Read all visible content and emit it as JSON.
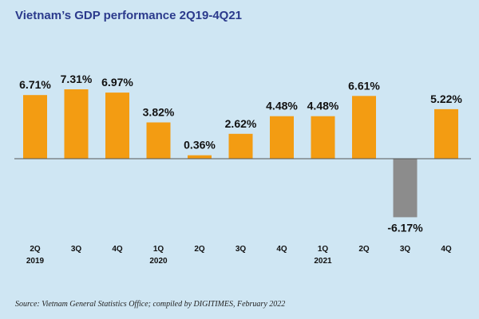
{
  "colors": {
    "background": "#cfe6f3",
    "title": "#2b3a8c",
    "positive_bar": "#f39c12",
    "negative_bar": "#8c8c8c",
    "zero_line": "#555555",
    "text": "#111111"
  },
  "chart_data": {
    "type": "bar",
    "title": "Vietnam’s GDP performance 2Q19-4Q21",
    "categories": [
      "2Q",
      "3Q",
      "4Q",
      "1Q",
      "2Q",
      "3Q",
      "4Q",
      "1Q",
      "2Q",
      "3Q",
      "4Q"
    ],
    "year_labels": [
      "2019",
      "",
      "",
      "2020",
      "",
      "",
      "",
      "2021",
      "",
      "",
      ""
    ],
    "values": [
      6.71,
      7.31,
      6.97,
      3.82,
      0.36,
      2.62,
      4.48,
      4.48,
      6.61,
      -6.17,
      5.22
    ],
    "value_labels": [
      "6.71%",
      "7.31%",
      "6.97%",
      "3.82%",
      "0.36%",
      "2.62%",
      "4.48%",
      "4.48%",
      "6.61%",
      "-6.17%",
      "5.22%"
    ],
    "xlabel": "",
    "ylabel": "",
    "ylim": [
      -6.17,
      7.31
    ],
    "grid": false,
    "legend": "none"
  },
  "source": "Source: Vietnam General Statistics Office; compiled by DIGITIMES, February 2022"
}
